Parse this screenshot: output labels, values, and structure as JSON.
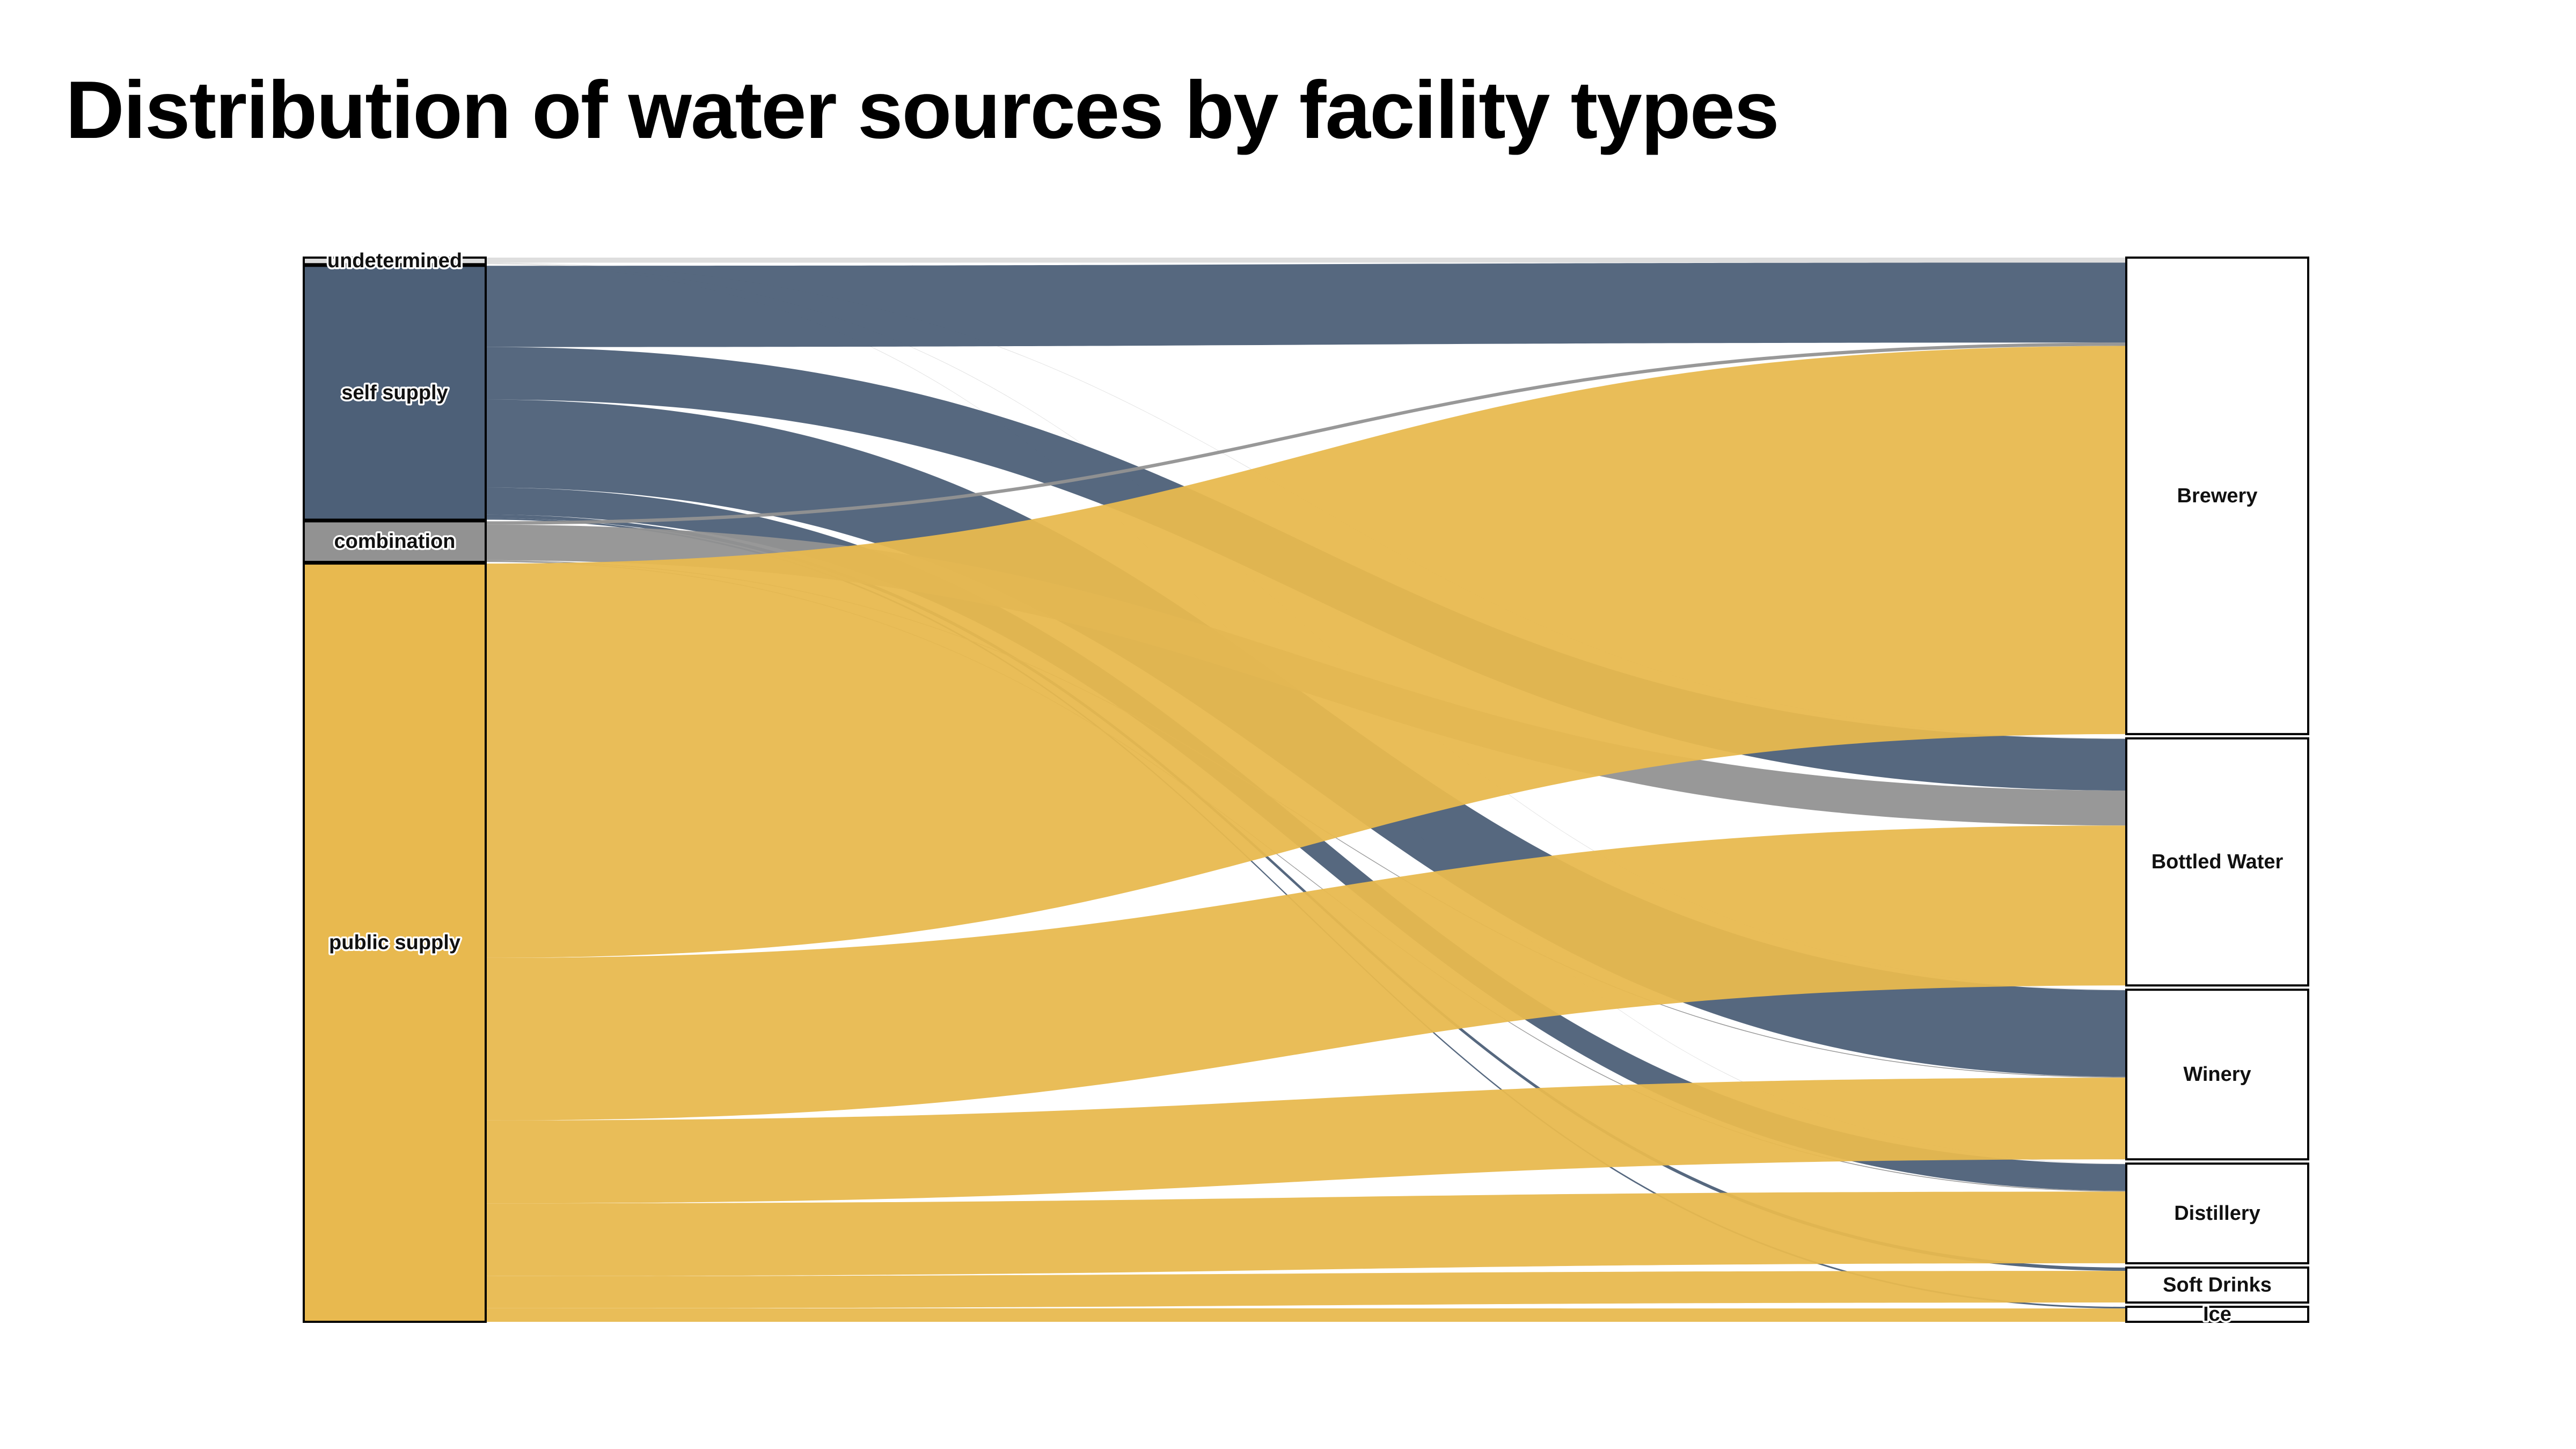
{
  "chart_data": {
    "type": "sankey",
    "title": "Distribution of water sources by facility types",
    "sources": [
      {
        "name": "undetermined",
        "color": "#dcdcdc"
      },
      {
        "name": "self supply",
        "color": "#4d6078"
      },
      {
        "name": "combination",
        "color": "#929292"
      },
      {
        "name": "public supply",
        "color": "#e8b94f"
      }
    ],
    "targets": [
      {
        "name": "Brewery"
      },
      {
        "name": "Bottled Water"
      },
      {
        "name": "Winery"
      },
      {
        "name": "Distillery"
      },
      {
        "name": "Soft Drinks"
      },
      {
        "name": "Ice"
      }
    ],
    "links": [
      {
        "source": "undetermined",
        "target": "Brewery",
        "value": 3
      },
      {
        "source": "undetermined",
        "target": "Bottled Water",
        "value": 0.3
      },
      {
        "source": "undetermined",
        "target": "Winery",
        "value": 0.3
      },
      {
        "source": "undetermined",
        "target": "Distillery",
        "value": 0.3
      },
      {
        "source": "self supply",
        "target": "Brewery",
        "value": 48
      },
      {
        "source": "self supply",
        "target": "Bottled Water",
        "value": 31
      },
      {
        "source": "self supply",
        "target": "Winery",
        "value": 52
      },
      {
        "source": "self supply",
        "target": "Distillery",
        "value": 16
      },
      {
        "source": "self supply",
        "target": "Soft Drinks",
        "value": 2
      },
      {
        "source": "self supply",
        "target": "Ice",
        "value": 1
      },
      {
        "source": "combination",
        "target": "Brewery",
        "value": 2
      },
      {
        "source": "combination",
        "target": "Bottled Water",
        "value": 21
      },
      {
        "source": "combination",
        "target": "Winery",
        "value": 0.5
      },
      {
        "source": "combination",
        "target": "Distillery",
        "value": 0.5
      },
      {
        "source": "public supply",
        "target": "Brewery",
        "value": 233
      },
      {
        "source": "public supply",
        "target": "Bottled Water",
        "value": 96
      },
      {
        "source": "public supply",
        "target": "Winery",
        "value": 49
      },
      {
        "source": "public supply",
        "target": "Distillery",
        "value": 43
      },
      {
        "source": "public supply",
        "target": "Soft Drinks",
        "value": 19
      },
      {
        "source": "public supply",
        "target": "Ice",
        "value": 8
      }
    ]
  }
}
